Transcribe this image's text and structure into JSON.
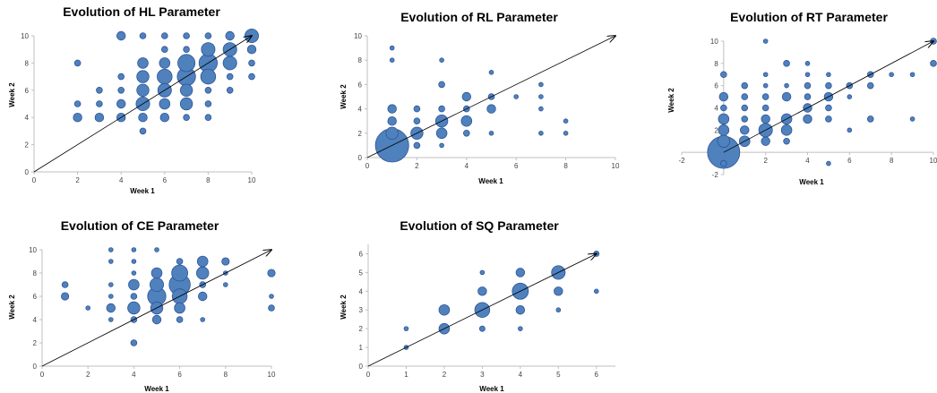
{
  "colors": {
    "bubble_fill": "#4f81bd",
    "bubble_stroke": "#2f5597",
    "axis": "#bfbfbf",
    "arrow": "#000000"
  },
  "chart_data": [
    {
      "type": "scatter",
      "title": "Evolution of HL Parameter",
      "xlabel": "Week 1",
      "ylabel": "Week 2",
      "xlim": [
        0,
        10
      ],
      "ylim": [
        0,
        10
      ],
      "xticks": [
        0,
        2,
        4,
        6,
        8,
        10
      ],
      "yticks": [
        0,
        2,
        4,
        6,
        8,
        10
      ],
      "reference_line": [
        [
          0,
          0
        ],
        [
          10,
          10
        ]
      ],
      "points": [
        {
          "x": 2,
          "y": 8,
          "s": 1
        },
        {
          "x": 2,
          "y": 5,
          "s": 1
        },
        {
          "x": 2,
          "y": 4,
          "s": 2
        },
        {
          "x": 3,
          "y": 6,
          "s": 1
        },
        {
          "x": 3,
          "y": 5,
          "s": 1
        },
        {
          "x": 3,
          "y": 4,
          "s": 2
        },
        {
          "x": 4,
          "y": 10,
          "s": 2
        },
        {
          "x": 4,
          "y": 7,
          "s": 1
        },
        {
          "x": 4,
          "y": 6,
          "s": 1
        },
        {
          "x": 4,
          "y": 5,
          "s": 2
        },
        {
          "x": 4,
          "y": 4,
          "s": 2
        },
        {
          "x": 5,
          "y": 10,
          "s": 1
        },
        {
          "x": 5,
          "y": 8,
          "s": 3
        },
        {
          "x": 5,
          "y": 7,
          "s": 4
        },
        {
          "x": 5,
          "y": 6,
          "s": 4
        },
        {
          "x": 5,
          "y": 5,
          "s": 5
        },
        {
          "x": 5,
          "y": 4,
          "s": 2
        },
        {
          "x": 5,
          "y": 3,
          "s": 1
        },
        {
          "x": 6,
          "y": 10,
          "s": 1
        },
        {
          "x": 6,
          "y": 9,
          "s": 1
        },
        {
          "x": 6,
          "y": 8,
          "s": 3
        },
        {
          "x": 6,
          "y": 7,
          "s": 6
        },
        {
          "x": 6,
          "y": 6,
          "s": 5
        },
        {
          "x": 6,
          "y": 5,
          "s": 3
        },
        {
          "x": 6,
          "y": 4,
          "s": 2
        },
        {
          "x": 7,
          "y": 10,
          "s": 1
        },
        {
          "x": 7,
          "y": 9,
          "s": 1
        },
        {
          "x": 7,
          "y": 8,
          "s": 8
        },
        {
          "x": 7,
          "y": 7,
          "s": 9
        },
        {
          "x": 7,
          "y": 6,
          "s": 4
        },
        {
          "x": 7,
          "y": 5,
          "s": 4
        },
        {
          "x": 7,
          "y": 4,
          "s": 1
        },
        {
          "x": 8,
          "y": 10,
          "s": 1
        },
        {
          "x": 8,
          "y": 9,
          "s": 5
        },
        {
          "x": 8,
          "y": 8,
          "s": 9
        },
        {
          "x": 8,
          "y": 7,
          "s": 6
        },
        {
          "x": 8,
          "y": 6,
          "s": 1
        },
        {
          "x": 8,
          "y": 5,
          "s": 1
        },
        {
          "x": 8,
          "y": 4,
          "s": 1
        },
        {
          "x": 9,
          "y": 10,
          "s": 2
        },
        {
          "x": 9,
          "y": 9,
          "s": 5
        },
        {
          "x": 9,
          "y": 8,
          "s": 5
        },
        {
          "x": 9,
          "y": 7,
          "s": 1
        },
        {
          "x": 9,
          "y": 6,
          "s": 1
        },
        {
          "x": 10,
          "y": 10,
          "s": 5
        },
        {
          "x": 10,
          "y": 9,
          "s": 2
        },
        {
          "x": 10,
          "y": 8,
          "s": 1
        },
        {
          "x": 10,
          "y": 7,
          "s": 1
        }
      ]
    },
    {
      "type": "scatter",
      "title": "Evolution of RL Parameter",
      "xlabel": "Week 1",
      "ylabel": "Week 2",
      "xlim": [
        0,
        10
      ],
      "ylim": [
        0,
        10
      ],
      "xticks": [
        0,
        2,
        4,
        6,
        8,
        10
      ],
      "yticks": [
        0,
        2,
        4,
        6,
        8,
        10
      ],
      "reference_line": [
        [
          0,
          0
        ],
        [
          10,
          10
        ]
      ],
      "points": [
        {
          "x": 1,
          "y": 9,
          "s": 0.5
        },
        {
          "x": 1,
          "y": 8,
          "s": 0.5
        },
        {
          "x": 1,
          "y": 4,
          "s": 2
        },
        {
          "x": 1,
          "y": 3,
          "s": 2
        },
        {
          "x": 1,
          "y": 2,
          "s": 4
        },
        {
          "x": 1,
          "y": 1,
          "s": 30
        },
        {
          "x": 2,
          "y": 4,
          "s": 1
        },
        {
          "x": 2,
          "y": 3,
          "s": 1
        },
        {
          "x": 2,
          "y": 2,
          "s": 4
        },
        {
          "x": 2,
          "y": 1,
          "s": 1
        },
        {
          "x": 3,
          "y": 8,
          "s": 0.5
        },
        {
          "x": 3,
          "y": 6,
          "s": 1
        },
        {
          "x": 3,
          "y": 4,
          "s": 1
        },
        {
          "x": 3,
          "y": 3,
          "s": 4
        },
        {
          "x": 3,
          "y": 2,
          "s": 3
        },
        {
          "x": 3,
          "y": 1,
          "s": 0.5
        },
        {
          "x": 4,
          "y": 5,
          "s": 2
        },
        {
          "x": 4,
          "y": 4,
          "s": 1
        },
        {
          "x": 4,
          "y": 3,
          "s": 3
        },
        {
          "x": 4,
          "y": 2,
          "s": 1
        },
        {
          "x": 5,
          "y": 7,
          "s": 0.5
        },
        {
          "x": 5,
          "y": 5,
          "s": 1
        },
        {
          "x": 5,
          "y": 4,
          "s": 2
        },
        {
          "x": 5,
          "y": 2,
          "s": 0.5
        },
        {
          "x": 6,
          "y": 5,
          "s": 0.5
        },
        {
          "x": 7,
          "y": 6,
          "s": 0.5
        },
        {
          "x": 7,
          "y": 5,
          "s": 0.5
        },
        {
          "x": 7,
          "y": 4,
          "s": 0.5
        },
        {
          "x": 7,
          "y": 2,
          "s": 0.5
        },
        {
          "x": 8,
          "y": 3,
          "s": 0.5
        },
        {
          "x": 8,
          "y": 2,
          "s": 0.5
        }
      ]
    },
    {
      "type": "scatter",
      "title": "Evolution of RT Parameter",
      "xlabel": "Week 1",
      "ylabel": "Week 2",
      "xlim": [
        -2,
        10
      ],
      "ylim": [
        -2,
        10
      ],
      "xticks": [
        -2,
        0,
        2,
        4,
        6,
        8,
        10
      ],
      "yticks": [
        -2,
        0,
        2,
        4,
        6,
        8,
        10
      ],
      "reference_line": [
        [
          0,
          0
        ],
        [
          10,
          10
        ]
      ],
      "points": [
        {
          "x": 0,
          "y": 7,
          "s": 1
        },
        {
          "x": 0,
          "y": 5,
          "s": 2
        },
        {
          "x": 0,
          "y": 4,
          "s": 1
        },
        {
          "x": 0,
          "y": 3,
          "s": 3
        },
        {
          "x": 0,
          "y": 2,
          "s": 3
        },
        {
          "x": 0,
          "y": 1,
          "s": 4
        },
        {
          "x": 0,
          "y": 0,
          "s": 28
        },
        {
          "x": 0,
          "y": -1,
          "s": 1
        },
        {
          "x": 1,
          "y": 6,
          "s": 1
        },
        {
          "x": 1,
          "y": 5,
          "s": 1
        },
        {
          "x": 1,
          "y": 4,
          "s": 1
        },
        {
          "x": 1,
          "y": 3,
          "s": 1
        },
        {
          "x": 1,
          "y": 2,
          "s": 2
        },
        {
          "x": 1,
          "y": 1,
          "s": 3
        },
        {
          "x": 2,
          "y": 10,
          "s": 0.5
        },
        {
          "x": 2,
          "y": 7,
          "s": 0.5
        },
        {
          "x": 2,
          "y": 6,
          "s": 0.5
        },
        {
          "x": 2,
          "y": 5,
          "s": 1
        },
        {
          "x": 2,
          "y": 4,
          "s": 1
        },
        {
          "x": 2,
          "y": 3,
          "s": 2
        },
        {
          "x": 2,
          "y": 2,
          "s": 5
        },
        {
          "x": 2,
          "y": 1,
          "s": 2
        },
        {
          "x": 3,
          "y": 8,
          "s": 1
        },
        {
          "x": 3,
          "y": 6,
          "s": 0.5
        },
        {
          "x": 3,
          "y": 5,
          "s": 2
        },
        {
          "x": 3,
          "y": 3,
          "s": 3
        },
        {
          "x": 3,
          "y": 2,
          "s": 3
        },
        {
          "x": 3,
          "y": 1,
          "s": 1
        },
        {
          "x": 4,
          "y": 8,
          "s": 0.5
        },
        {
          "x": 4,
          "y": 7,
          "s": 0.5
        },
        {
          "x": 4,
          "y": 6,
          "s": 1
        },
        {
          "x": 4,
          "y": 5,
          "s": 1
        },
        {
          "x": 4,
          "y": 4,
          "s": 2
        },
        {
          "x": 4,
          "y": 3,
          "s": 2
        },
        {
          "x": 5,
          "y": 7,
          "s": 0.5
        },
        {
          "x": 5,
          "y": 6,
          "s": 1
        },
        {
          "x": 5,
          "y": 5,
          "s": 2
        },
        {
          "x": 5,
          "y": 4,
          "s": 1
        },
        {
          "x": 5,
          "y": 3,
          "s": 1
        },
        {
          "x": 5,
          "y": -1,
          "s": 0.5
        },
        {
          "x": 6,
          "y": 6,
          "s": 1
        },
        {
          "x": 6,
          "y": 5,
          "s": 0.5
        },
        {
          "x": 6,
          "y": 2,
          "s": 0.5
        },
        {
          "x": 7,
          "y": 7,
          "s": 1
        },
        {
          "x": 7,
          "y": 6,
          "s": 1
        },
        {
          "x": 7,
          "y": 3,
          "s": 1
        },
        {
          "x": 8,
          "y": 7,
          "s": 0.5
        },
        {
          "x": 9,
          "y": 7,
          "s": 0.5
        },
        {
          "x": 9,
          "y": 3,
          "s": 0.5
        },
        {
          "x": 10,
          "y": 10,
          "s": 1
        },
        {
          "x": 10,
          "y": 8,
          "s": 1
        }
      ]
    },
    {
      "type": "scatter",
      "title": "Evolution of CE Parameter",
      "xlabel": "Week 1",
      "ylabel": "Week 2",
      "xlim": [
        0,
        10
      ],
      "ylim": [
        0,
        10
      ],
      "xticks": [
        0,
        2,
        4,
        6,
        8,
        10
      ],
      "yticks": [
        0,
        2,
        4,
        6,
        8,
        10
      ],
      "reference_line": [
        [
          0,
          0
        ],
        [
          10,
          10
        ]
      ],
      "points": [
        {
          "x": 1,
          "y": 7,
          "s": 1
        },
        {
          "x": 1,
          "y": 6,
          "s": 1.5
        },
        {
          "x": 2,
          "y": 5,
          "s": 0.5
        },
        {
          "x": 3,
          "y": 10,
          "s": 0.5
        },
        {
          "x": 3,
          "y": 9,
          "s": 0.5
        },
        {
          "x": 3,
          "y": 7,
          "s": 0.5
        },
        {
          "x": 3,
          "y": 6,
          "s": 0.5
        },
        {
          "x": 3,
          "y": 5,
          "s": 2
        },
        {
          "x": 3,
          "y": 4,
          "s": 0.5
        },
        {
          "x": 4,
          "y": 10,
          "s": 0.5
        },
        {
          "x": 4,
          "y": 9,
          "s": 0.5
        },
        {
          "x": 4,
          "y": 8,
          "s": 0.5
        },
        {
          "x": 4,
          "y": 7,
          "s": 3
        },
        {
          "x": 4,
          "y": 6,
          "s": 1
        },
        {
          "x": 4,
          "y": 5,
          "s": 4
        },
        {
          "x": 4,
          "y": 4,
          "s": 1
        },
        {
          "x": 4,
          "y": 2,
          "s": 1
        },
        {
          "x": 5,
          "y": 10,
          "s": 0.5
        },
        {
          "x": 5,
          "y": 8,
          "s": 3
        },
        {
          "x": 5,
          "y": 7,
          "s": 5
        },
        {
          "x": 5,
          "y": 6,
          "s": 9
        },
        {
          "x": 5,
          "y": 5,
          "s": 4
        },
        {
          "x": 5,
          "y": 4,
          "s": 2
        },
        {
          "x": 6,
          "y": 9,
          "s": 1
        },
        {
          "x": 6,
          "y": 8,
          "s": 7
        },
        {
          "x": 6,
          "y": 7,
          "s": 12
        },
        {
          "x": 6,
          "y": 6,
          "s": 6
        },
        {
          "x": 6,
          "y": 5,
          "s": 3
        },
        {
          "x": 6,
          "y": 4,
          "s": 1
        },
        {
          "x": 7,
          "y": 9,
          "s": 3
        },
        {
          "x": 7,
          "y": 8,
          "s": 4
        },
        {
          "x": 7,
          "y": 7,
          "s": 1
        },
        {
          "x": 7,
          "y": 6,
          "s": 2
        },
        {
          "x": 7,
          "y": 4,
          "s": 0.5
        },
        {
          "x": 8,
          "y": 9,
          "s": 1.5
        },
        {
          "x": 8,
          "y": 8,
          "s": 0.5
        },
        {
          "x": 8,
          "y": 7,
          "s": 0.5
        },
        {
          "x": 10,
          "y": 8,
          "s": 1.5
        },
        {
          "x": 10,
          "y": 6,
          "s": 0.5
        },
        {
          "x": 10,
          "y": 5,
          "s": 1
        }
      ]
    },
    {
      "type": "scatter",
      "title": "Evolution of SQ Parameter",
      "xlabel": "Week 1",
      "ylabel": "Week 2",
      "xlim": [
        0,
        6.5
      ],
      "ylim": [
        0,
        6.5
      ],
      "xticks": [
        0,
        1,
        2,
        3,
        4,
        5,
        6
      ],
      "yticks": [
        0,
        1,
        2,
        3,
        4,
        5,
        6
      ],
      "reference_line": [
        [
          0,
          0
        ],
        [
          6,
          6
        ]
      ],
      "points": [
        {
          "x": 1,
          "y": 2,
          "s": 0.5
        },
        {
          "x": 1,
          "y": 1,
          "s": 0.5
        },
        {
          "x": 2,
          "y": 3,
          "s": 3
        },
        {
          "x": 2,
          "y": 2,
          "s": 3
        },
        {
          "x": 3,
          "y": 5,
          "s": 0.5
        },
        {
          "x": 3,
          "y": 4,
          "s": 2
        },
        {
          "x": 3,
          "y": 3,
          "s": 6
        },
        {
          "x": 3,
          "y": 2,
          "s": 0.8
        },
        {
          "x": 4,
          "y": 5,
          "s": 2
        },
        {
          "x": 4,
          "y": 4,
          "s": 7
        },
        {
          "x": 4,
          "y": 3,
          "s": 2
        },
        {
          "x": 4,
          "y": 2,
          "s": 0.5
        },
        {
          "x": 5,
          "y": 5,
          "s": 5
        },
        {
          "x": 5,
          "y": 4,
          "s": 2
        },
        {
          "x": 5,
          "y": 3,
          "s": 0.5
        },
        {
          "x": 6,
          "y": 6,
          "s": 0.8
        },
        {
          "x": 6,
          "y": 4,
          "s": 0.5
        }
      ]
    }
  ]
}
